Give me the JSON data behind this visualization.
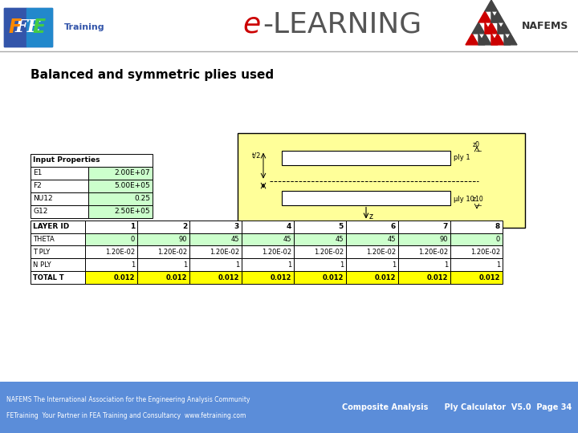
{
  "title": "Balanced and symmetric plies used",
  "page_bg": "#ffffff",
  "footer_bg": "#5b8dd9",
  "footer_left1": "NAFEMS The International Association for the Engineering Analysis Community",
  "footer_left2": "FETraining  Your Partner in FEA Training and Consultancy  www.fetraining.com",
  "footer_right": "Composite Analysis      Ply Calculator  V5.0  Page 34",
  "input_props_title": "Input Properties",
  "input_props": [
    [
      "E1",
      "2.00E+07"
    ],
    [
      "F2",
      "5.00E+05"
    ],
    [
      "NU12",
      "0.25"
    ],
    [
      "G12",
      "2.50E+05"
    ]
  ],
  "layer_table_headers": [
    "LAYER ID",
    "1",
    "2",
    "3",
    "4",
    "5",
    "6",
    "7",
    "8"
  ],
  "layer_table_rows": [
    [
      "THETA",
      "0",
      "90",
      "45",
      "45",
      "45",
      "45",
      "90",
      "0"
    ],
    [
      "T PLY",
      "1.20E-02",
      "1.20E-02",
      "1.20E-02",
      "1.20E-02",
      "1.20E-02",
      "1.20E-02",
      "1.20E-02",
      "1.20E-02"
    ],
    [
      "N PLY",
      "1",
      "1",
      "1",
      "1",
      "1",
      "1",
      "1",
      "1"
    ],
    [
      "TOTAL T",
      "0.012",
      "0.012",
      "0.012",
      "0.012",
      "0.012",
      "0.012",
      "0.012",
      "0.012"
    ]
  ],
  "yellow_bg": "#ffff00",
  "green_bg": "#ccffcc",
  "diagram_bg": "#ffff99",
  "title_color": "#000000",
  "title_fontsize": 11,
  "elearn_color_e": "#cc0000",
  "elearn_color_rest": "#555555",
  "nafems_color1": "#cc0000",
  "nafems_color2": "#555555"
}
